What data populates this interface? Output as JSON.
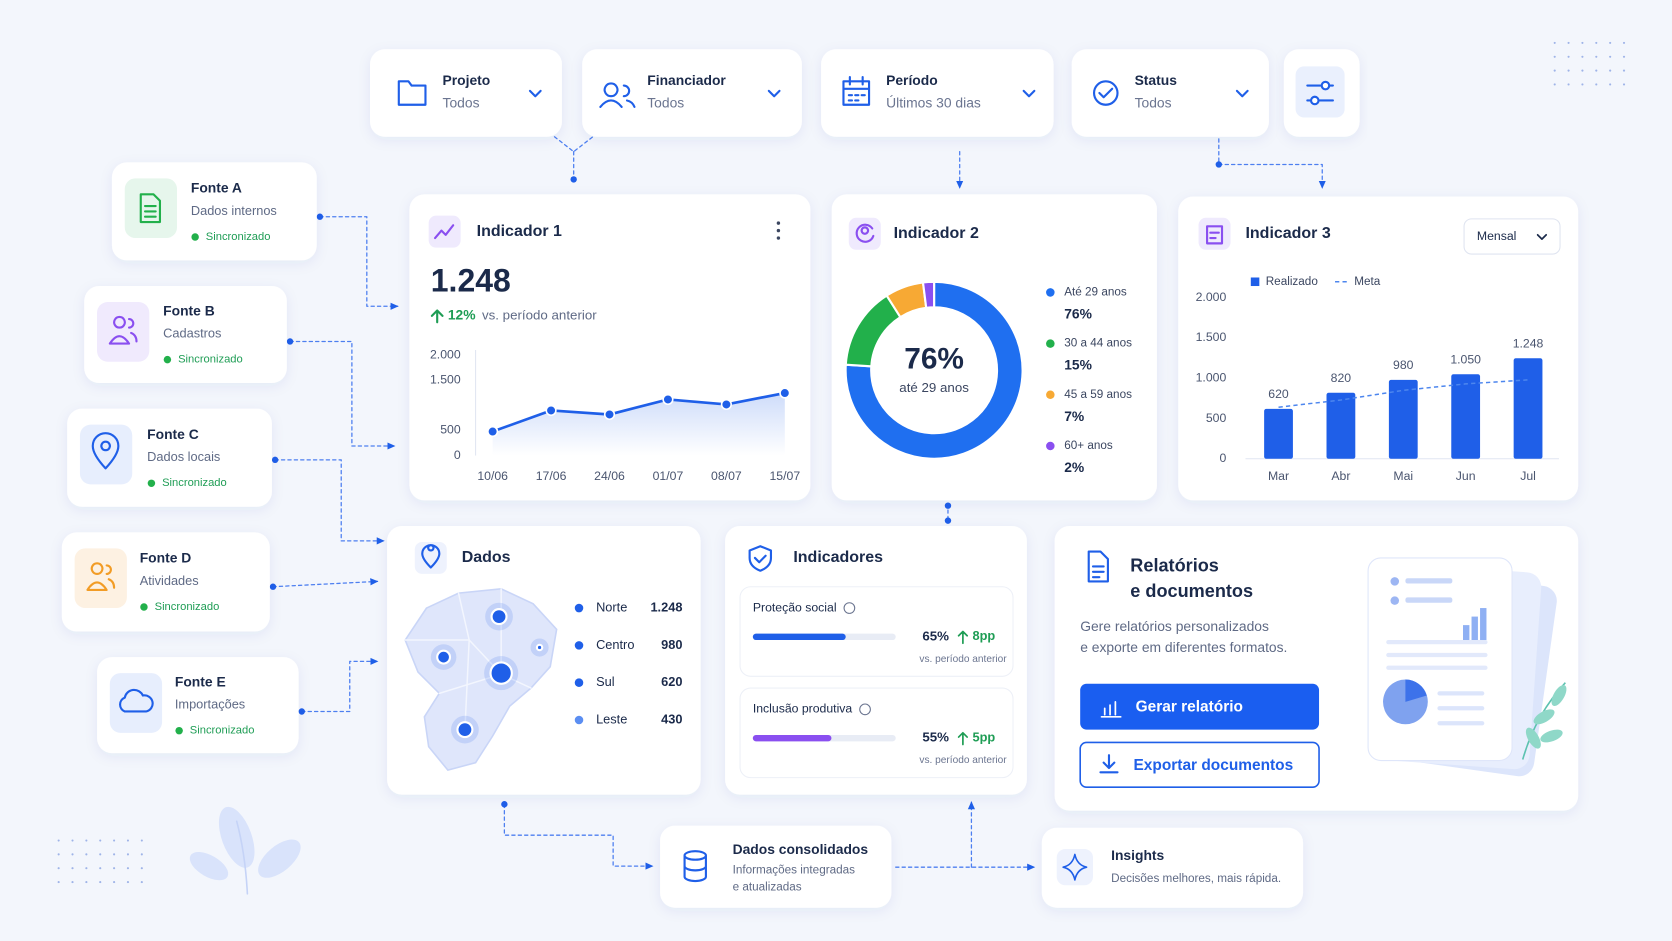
{
  "filters": [
    {
      "label": "Projeto",
      "value": "Todos"
    },
    {
      "label": "Financiador",
      "value": "Todos"
    },
    {
      "label": "Período",
      "value": "Últimos 30 dias"
    },
    {
      "label": "Status",
      "value": "Todos"
    }
  ],
  "sources": [
    {
      "title": "Fonte A",
      "subtitle": "Dados internos",
      "status": "Sincronizado"
    },
    {
      "title": "Fonte B",
      "subtitle": "Cadastros",
      "status": "Sincronizado"
    },
    {
      "title": "Fonte C",
      "subtitle": "Dados locais",
      "status": "Sincronizado"
    },
    {
      "title": "Fonte D",
      "subtitle": "Atividades",
      "status": "Sincronizado"
    },
    {
      "title": "Fonte E",
      "subtitle": "Importações",
      "status": "Sincronizado"
    }
  ],
  "indicator_1": {
    "title": "Indicador 1",
    "value": "1.248",
    "change": "12%",
    "change_note": "vs. período anterior",
    "chart_data": {
      "type": "line",
      "categories": [
        "10/06",
        "17/06",
        "24/06",
        "01/07",
        "08/07",
        "15/07"
      ],
      "values": [
        480,
        900,
        820,
        1120,
        1020,
        1248
      ],
      "color": "#1f5fe8",
      "ylim": [
        0,
        2000
      ],
      "yticks": [
        0,
        500,
        {
          "value": 1500,
          "label": "1.500"
        },
        {
          "value": 2000,
          "label": "2.000"
        }
      ]
    }
  },
  "indicator_2": {
    "title": "Indicador 2",
    "chart_data": {
      "type": "pie",
      "center_value": "76%",
      "center_label": "até 29 anos",
      "categories": [
        "Até 29 anos",
        "30 a 44 anos",
        "45 a 59 anos",
        "60+ anos"
      ],
      "values": [
        76,
        15,
        7,
        2
      ],
      "value_labels": [
        "76%",
        "15%",
        "7%",
        "2%"
      ],
      "colors": [
        "#1f6ff0",
        "#22b04b",
        "#f7a934",
        "#8a4ff0"
      ]
    }
  },
  "indicator_3": {
    "title": "Indicador 3",
    "period": "Mensal",
    "chart_data": {
      "type": "bar",
      "categories": [
        "Mar",
        "Abr",
        "Mai",
        "Jun",
        "Jul"
      ],
      "series": [
        {
          "name": "Realizado",
          "color": "#1f5fe8",
          "values": [
            620,
            820,
            980,
            1050,
            1248
          ],
          "value_labels": [
            "620",
            "820",
            "980",
            "1.050",
            "1.248"
          ]
        },
        {
          "name": "Meta",
          "color": "#4d86ee",
          "values": [
            640,
            730,
            850,
            930,
            980
          ]
        }
      ],
      "ylim": [
        0,
        2000
      ],
      "yticks": [
        0,
        500,
        {
          "value": 1000,
          "label": "1.000"
        },
        {
          "value": 1500,
          "label": "1.500"
        },
        {
          "value": 2000,
          "label": "2.000"
        }
      ]
    }
  },
  "dados": {
    "title": "Dados",
    "rows": [
      [
        "Norte",
        "1.248"
      ],
      [
        "Centro",
        "980"
      ],
      [
        "Sul",
        "620"
      ],
      [
        "Leste",
        "430"
      ]
    ]
  },
  "indicadores": {
    "title": "Indicadores",
    "items": [
      {
        "name": "Proteção social",
        "value": 65,
        "value_label": "65%",
        "change": "8pp",
        "note": "vs. período anterior",
        "color": "#1f5fe8"
      },
      {
        "name": "Inclusão produtiva",
        "value": 55,
        "value_label": "55%",
        "change": "5pp",
        "note": "vs. período anterior",
        "color": "#8a4ff0"
      }
    ]
  },
  "reports": {
    "title": [
      "Relatórios",
      "e documentos"
    ],
    "description": [
      "Gere relatórios personalizados",
      "e exporte em diferentes formatos."
    ],
    "primary_button": "Gerar relatório",
    "secondary_button": "Exportar documentos"
  },
  "consolidated": {
    "title": "Dados consolidados",
    "subtitle": [
      "Informações integradas",
      "e atualizadas"
    ]
  },
  "insights": {
    "title": "Insights",
    "subtitle": "Decisões melhores, mais rápida."
  }
}
